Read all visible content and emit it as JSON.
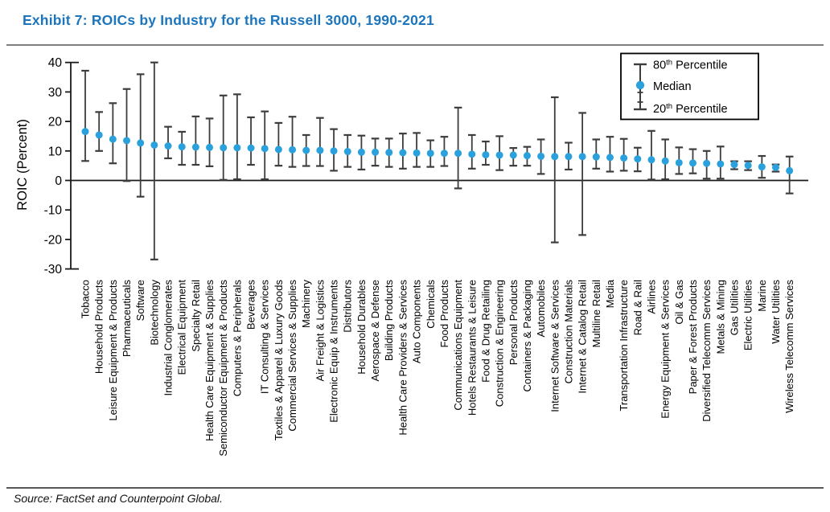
{
  "page": {
    "source": "Source: FactSet and Counterpoint Global."
  },
  "colors": {
    "title": "#1d76bd",
    "median_dot": "#2aa1dc",
    "whisker": "#3d3d3d",
    "axis": "#1a1a1a",
    "rule_top": "#7d7d7d",
    "rule_bottom": "#585858",
    "text": "#000000"
  },
  "chart_data": {
    "type": "scatter",
    "subtype": "error-bar (20th-80th percentile range with median point)",
    "title": "Exhibit 7: ROICs by Industry for the Russell 3000, 1990-2021",
    "xlabel": "",
    "ylabel": "ROIC (Percent)",
    "ylim": [
      -30,
      40
    ],
    "yticks": [
      40,
      30,
      20,
      10,
      0,
      -10,
      -20,
      -30
    ],
    "grid": false,
    "legend_position": "top-right",
    "legend": {
      "items": [
        {
          "prefix": "80",
          "sup": "th",
          "text": " Percentile"
        },
        {
          "text": "Median"
        },
        {
          "prefix": "20",
          "sup": "th",
          "text": " Percentile"
        }
      ]
    },
    "categories": [
      "Tobacco",
      "Household Products",
      "Leisure Equipment & Products",
      "Pharmaceuticals",
      "Software",
      "Biotechnology",
      "Industrial Conglomerates",
      "Electrical Equipment",
      "Specialty Retail",
      "Health Care Equipment & Supplies",
      "Semiconductor Equipment & Products",
      "Computers & Peripherals",
      "Beverages",
      "IT Consulting & Services",
      "Textiles & Apparel & Luxury Goods",
      "Commercial Services & Supplies",
      "Machinery",
      "Air Freight & Logistics",
      "Electronic Equip & Instruments",
      "Distributors",
      "Household Durables",
      "Aerospace & Defense",
      "Building Products",
      "Health Care Providers & Services",
      "Auto Components",
      "Chemicals",
      "Food Products",
      "Communications Equipment",
      "Hotels Restaurants & Leisure",
      "Food & Drug Retailing",
      "Construction & Engineering",
      "Personal Products",
      "Containers & Packaging",
      "Automobiles",
      "Internet Software & Services",
      "Construction Materials",
      "Internet & Catalog Retail",
      "Multiline Retail",
      "Media",
      "Transportation Infrastructure",
      "Road & Rail",
      "Airlines",
      "Energy Equipment & Services",
      "Oil & Gas",
      "Paper & Forest Products",
      "Diversified Telecomm Services",
      "Metals & Mining",
      "Gas Utilities",
      "Electric Utilities",
      "Marine",
      "Water Utilities",
      "Wireless Telecomm Services"
    ],
    "series": [
      {
        "name": "80th Percentile",
        "values": [
          37.2,
          23.2,
          26.2,
          31.0,
          36.0,
          40.0,
          18.2,
          16.5,
          21.7,
          21.0,
          28.8,
          29.2,
          21.4,
          23.4,
          19.5,
          21.6,
          15.4,
          21.2,
          17.4,
          15.4,
          15.2,
          14.2,
          14.2,
          15.9,
          16.1,
          13.6,
          14.8,
          24.7,
          15.4,
          13.2,
          15.0,
          11.0,
          11.4,
          13.9,
          28.2,
          12.8,
          22.9,
          13.9,
          14.8,
          14.1,
          11.1,
          16.8,
          13.9,
          11.2,
          10.6,
          10.0,
          11.5,
          6.5,
          6.5,
          8.3,
          5.4,
          8.1
        ]
      },
      {
        "name": "Median",
        "values": [
          16.6,
          15.4,
          14.0,
          13.5,
          12.7,
          12.0,
          11.7,
          11.4,
          11.3,
          11.2,
          11.1,
          11.1,
          11.0,
          10.8,
          10.5,
          10.4,
          10.2,
          10.2,
          10.0,
          9.8,
          9.6,
          9.6,
          9.5,
          9.4,
          9.3,
          9.2,
          9.2,
          9.2,
          8.9,
          8.7,
          8.6,
          8.6,
          8.4,
          8.2,
          8.1,
          8.1,
          8.1,
          8.0,
          7.8,
          7.6,
          7.3,
          7.0,
          6.6,
          6.0,
          5.9,
          5.8,
          5.6,
          5.4,
          5.1,
          4.6,
          4.4,
          3.3
        ]
      },
      {
        "name": "20th Percentile",
        "values": [
          6.6,
          10.0,
          5.8,
          -0.2,
          -5.5,
          -26.8,
          7.5,
          5.3,
          5.3,
          4.8,
          0.2,
          0.4,
          5.3,
          0.4,
          5.0,
          4.6,
          4.9,
          4.9,
          3.3,
          4.6,
          3.7,
          5.0,
          4.6,
          4.0,
          4.6,
          4.6,
          4.9,
          -2.7,
          4.0,
          5.3,
          3.5,
          5.0,
          5.0,
          2.2,
          -21.0,
          3.7,
          -18.5,
          4.0,
          3.0,
          3.3,
          3.1,
          0.3,
          0.4,
          2.2,
          2.4,
          0.6,
          0.6,
          3.8,
          3.5,
          0.9,
          3.0,
          -4.4
        ]
      }
    ]
  }
}
